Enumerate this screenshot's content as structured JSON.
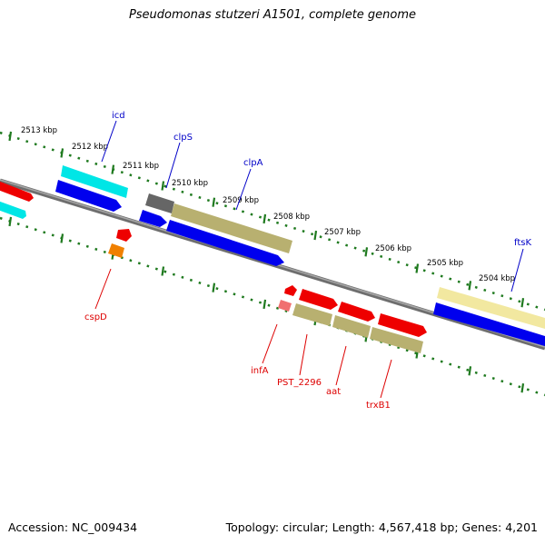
{
  "title": "Pseudomonas stutzeri A1501, complete genome",
  "footer": {
    "accession": "Accession: NC_009434",
    "summary": "Topology: circular; Length: 4,567,418 bp; Genes: 4,201"
  },
  "colors": {
    "backbone": "#808080",
    "ticks": "#1f7a1f",
    "label_blue": "#0000c8",
    "label_red": "#dd0000",
    "cyan": "#00e6e6",
    "blue": "#0000ee",
    "red": "#ee0000",
    "olive": "#b8b070",
    "gray": "#666666",
    "pale_yellow": "#f2e8a0",
    "orange": "#f08000",
    "pink": "#f07070"
  },
  "scale_labels": [
    "2513 kbp",
    "2512 kbp",
    "2511 kbp",
    "2510 kbp",
    "2509 kbp",
    "2508 kbp",
    "2507 kbp",
    "2506 kbp",
    "2505 kbp",
    "2504 kbp"
  ],
  "gene_labels": {
    "top": [
      "icd",
      "clpS",
      "clpA",
      "ftsK"
    ],
    "bottom": [
      "cspD",
      "infA",
      "PST_2296",
      "aat",
      "trxB1"
    ]
  }
}
